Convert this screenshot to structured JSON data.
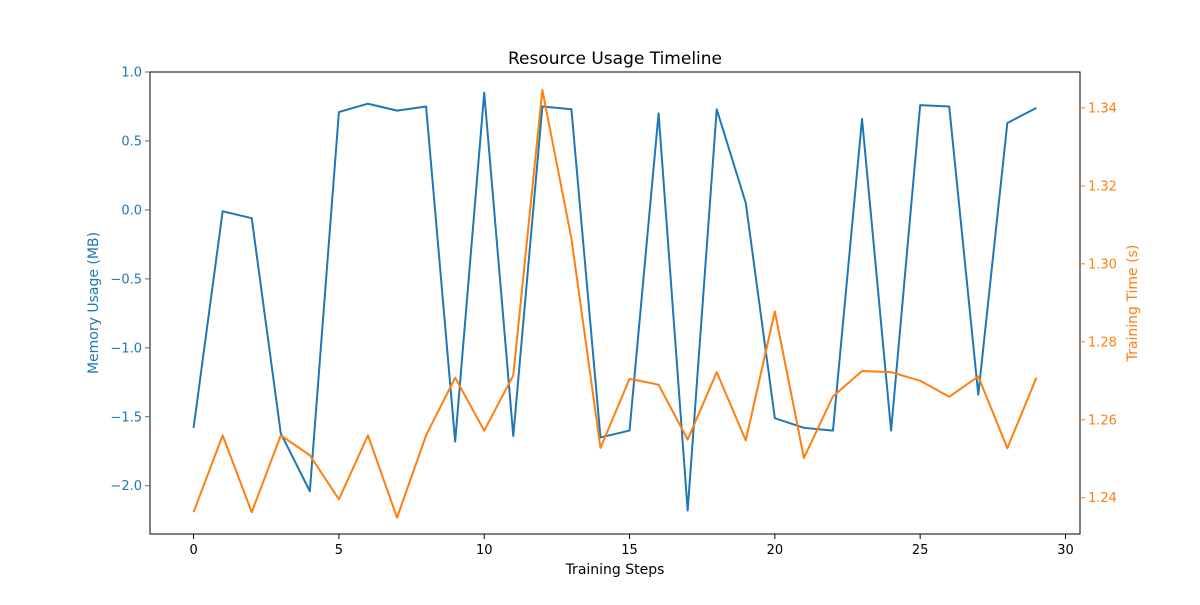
{
  "chart_data": {
    "type": "line",
    "title": "Resource Usage Timeline",
    "xlabel": "Training Steps",
    "ylabel_left": "Memory Usage (MB)",
    "ylabel_right": "Training Time (s)",
    "xlim": [
      -1.5,
      30.5
    ],
    "ylim_left": [
      -2.35,
      1.0
    ],
    "ylim_right": [
      1.2307,
      1.3492
    ],
    "x_ticks": [
      0,
      5,
      10,
      15,
      20,
      25,
      30
    ],
    "y_left_ticks": [
      -2.0,
      -1.5,
      -1.0,
      -0.5,
      0.0,
      0.5,
      1.0
    ],
    "y_right_ticks": [
      1.24,
      1.26,
      1.28,
      1.3,
      1.32,
      1.34
    ],
    "grid": false,
    "legend": "none",
    "colors": {
      "left": "#1f77b4",
      "right": "#ff7f0e",
      "axes": "#000000"
    },
    "x": [
      0,
      1,
      2,
      3,
      4,
      5,
      6,
      7,
      8,
      9,
      10,
      11,
      12,
      13,
      14,
      15,
      16,
      17,
      18,
      19,
      20,
      21,
      22,
      23,
      24,
      25,
      26,
      27,
      28,
      29
    ],
    "series": [
      {
        "axis": "left",
        "values": [
          -1.58,
          -0.01,
          -0.06,
          -1.62,
          -2.04,
          0.71,
          0.77,
          0.72,
          0.75,
          -1.68,
          0.85,
          -1.64,
          0.75,
          0.73,
          -1.65,
          -1.6,
          0.7,
          -2.18,
          0.73,
          0.05,
          -1.51,
          -1.58,
          -1.6,
          0.66,
          -1.6,
          0.76,
          0.75,
          -1.34,
          0.63,
          0.74
        ]
      },
      {
        "axis": "right",
        "values": [
          1.2363,
          1.256,
          1.2363,
          1.256,
          1.2509,
          1.2396,
          1.256,
          1.2349,
          1.256,
          1.2708,
          1.2572,
          1.2714,
          1.3446,
          1.3065,
          1.2528,
          1.2705,
          1.269,
          1.2549,
          1.2722,
          1.2547,
          1.2878,
          1.2502,
          1.266,
          1.2725,
          1.2722,
          1.27,
          1.2659,
          1.2711,
          1.2527,
          1.2708
        ]
      }
    ]
  }
}
